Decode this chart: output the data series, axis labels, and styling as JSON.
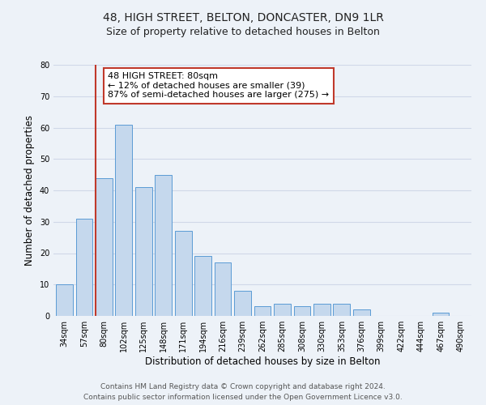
{
  "title": "48, HIGH STREET, BELTON, DONCASTER, DN9 1LR",
  "subtitle": "Size of property relative to detached houses in Belton",
  "xlabel": "Distribution of detached houses by size in Belton",
  "ylabel": "Number of detached properties",
  "footer_line1": "Contains HM Land Registry data © Crown copyright and database right 2024.",
  "footer_line2": "Contains public sector information licensed under the Open Government Licence v3.0.",
  "bar_labels": [
    "34sqm",
    "57sqm",
    "80sqm",
    "102sqm",
    "125sqm",
    "148sqm",
    "171sqm",
    "194sqm",
    "216sqm",
    "239sqm",
    "262sqm",
    "285sqm",
    "308sqm",
    "330sqm",
    "353sqm",
    "376sqm",
    "399sqm",
    "422sqm",
    "444sqm",
    "467sqm",
    "490sqm"
  ],
  "bar_values": [
    10,
    31,
    44,
    61,
    41,
    45,
    27,
    19,
    17,
    8,
    3,
    4,
    3,
    4,
    4,
    2,
    0,
    0,
    0,
    1,
    0
  ],
  "bar_color": "#c5d8ed",
  "bar_edge_color": "#5b9bd5",
  "highlight_bar_index": 2,
  "highlight_line_color": "#c0392b",
  "annotation_line1": "48 HIGH STREET: 80sqm",
  "annotation_line2": "← 12% of detached houses are smaller (39)",
  "annotation_line3": "87% of semi-detached houses are larger (275) →",
  "annotation_box_color": "#c0392b",
  "annotation_box_bg": "#ffffff",
  "ylim": [
    0,
    80
  ],
  "yticks": [
    0,
    10,
    20,
    30,
    40,
    50,
    60,
    70,
    80
  ],
  "grid_color": "#d0d8e8",
  "background_color": "#edf2f8",
  "plot_bg_color": "#edf2f8",
  "title_fontsize": 10,
  "subtitle_fontsize": 9,
  "axis_label_fontsize": 8.5,
  "tick_fontsize": 7,
  "annotation_fontsize": 8,
  "footer_fontsize": 6.5
}
